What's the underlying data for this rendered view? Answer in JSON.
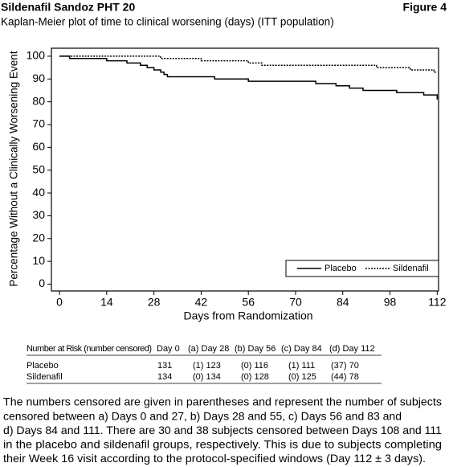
{
  "header": {
    "title": "Sildenafil Sandoz PHT 20",
    "figure": "Figure 4"
  },
  "chart_data": {
    "type": "line",
    "step": true,
    "title": "Kaplan-Meier plot of time to clinical worsening (days) (ITT population)",
    "x_label": "Days from Randomization",
    "y_label": "Percentage Without a Clinically Worsening  Event",
    "xlim": [
      -2.4,
      112.4
    ],
    "xticks": [
      0,
      14,
      28,
      42,
      56,
      70,
      84,
      98,
      112
    ],
    "ylim": [
      -3,
      103.5
    ],
    "yticks": [
      0,
      10,
      20,
      30,
      40,
      50,
      60,
      70,
      80,
      90,
      100
    ],
    "legend": "lower right",
    "series": [
      {
        "name": "Placebo",
        "color": "#000000",
        "dash": "solid",
        "x": [
          0,
          3,
          3,
          14,
          14,
          20,
          20,
          24,
          24,
          26,
          26,
          28,
          28,
          30,
          30,
          31,
          31,
          32,
          32,
          46,
          46,
          56,
          56,
          76,
          76,
          82,
          82,
          86,
          86,
          90,
          90,
          100,
          100,
          108,
          108,
          112,
          112
        ],
        "values": [
          100,
          100,
          99,
          99,
          98,
          98,
          97,
          97,
          96,
          96,
          95,
          95,
          94,
          94,
          93,
          93,
          92,
          92,
          91,
          91,
          90,
          90,
          89,
          89,
          88,
          88,
          87,
          87,
          86,
          86,
          85,
          85,
          84,
          84,
          83,
          83,
          81
        ]
      },
      {
        "name": "Sildenafil",
        "color": "#000000",
        "dash": "dotted",
        "x": [
          0,
          30,
          30,
          42,
          42,
          56,
          56,
          60,
          60,
          94,
          94,
          104,
          104,
          111,
          111,
          112
        ],
        "values": [
          100,
          100,
          99,
          99,
          98,
          98,
          97,
          97,
          96,
          96,
          95,
          95,
          94,
          94,
          93,
          93
        ]
      }
    ]
  },
  "table": {
    "header": [
      "Number at Risk (number censored)",
      "Day 0",
      "(a) Day 28",
      "(b) Day 56",
      "(c) Day 84",
      "(d) Day 112"
    ],
    "rows": [
      [
        "Placebo",
        "131",
        "(1) 123",
        "(0) 116",
        "(1) 111",
        "(37) 70"
      ],
      [
        "Sildenafil",
        "134",
        "(0) 134",
        "(0) 128",
        "(0) 125",
        "(44) 78"
      ]
    ]
  },
  "note": {
    "lines": [
      "The numbers censored are given in parentheses and represent the number of subjects",
      "censored between a) Days 0 and 27, b) Days 28 and 55, c) Days 56 and 83 and",
      "d) Days 84 and 111. There are 30 and 38 subjects censored between Days 108 and 111",
      "in the placebo and sildenafil groups, respectively. This is due to subjects completing",
      "their Week 16 visit according to the protocol-specified windows (Day 112 ± 3 days)."
    ]
  }
}
